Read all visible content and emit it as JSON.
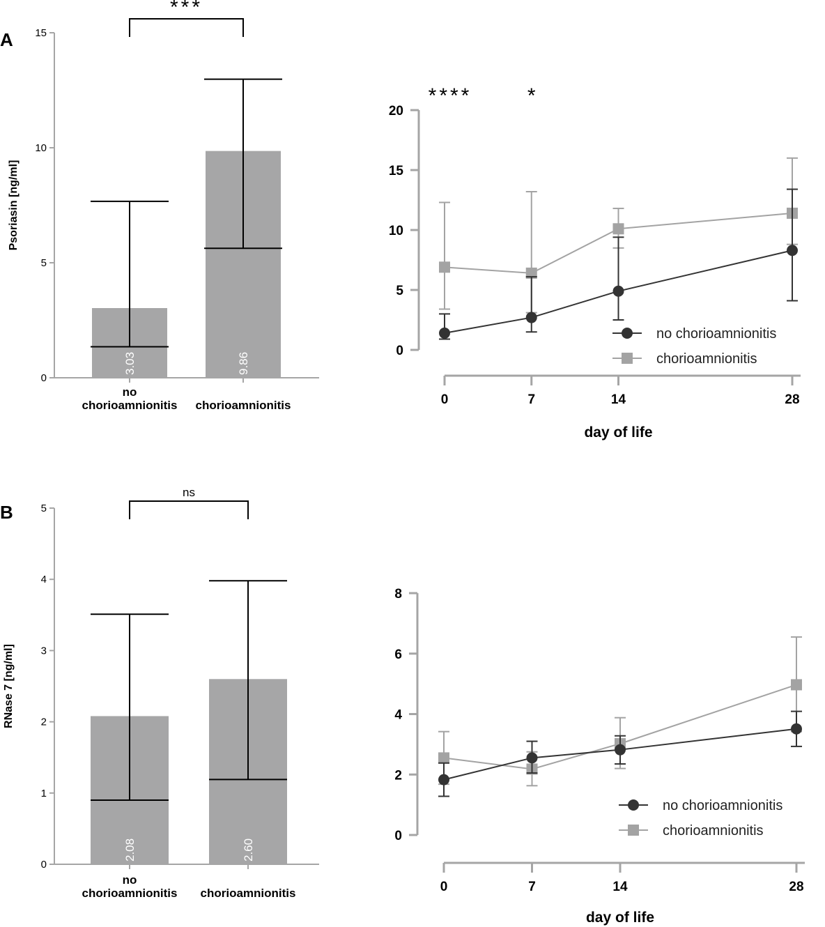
{
  "panels": {
    "A": "A",
    "B": "B"
  },
  "colors": {
    "bar": "#a6a6a7",
    "axis_light": "#a5a5a5",
    "no_chorio": "#333333",
    "chorio": "#a3a3a3",
    "errbar": "#000000"
  },
  "chart_data": [
    {
      "id": "A-bar",
      "type": "bar",
      "ylabel": "Psoriasin [ng/ml]",
      "ylim": [
        0,
        15
      ],
      "yticks": [
        0,
        5,
        10,
        15
      ],
      "categories": [
        [
          "no",
          "chorioamnionitis"
        ],
        [
          "chorioamnionitis"
        ]
      ],
      "values": [
        3.03,
        9.86
      ],
      "value_labels": [
        "3.03",
        "9.86"
      ],
      "err_low": [
        1.35,
        5.63
      ],
      "err_high": [
        7.67,
        12.98
      ],
      "significance": "***"
    },
    {
      "id": "A-line",
      "type": "line",
      "xlabel": "day of life",
      "ylabel": "",
      "x": [
        0,
        7,
        14,
        28
      ],
      "xticks": [
        "0",
        "7",
        "14",
        "28"
      ],
      "ylim": [
        0,
        20
      ],
      "yticks": [
        0,
        5,
        10,
        15,
        20
      ],
      "significance": [
        {
          "x": 0,
          "label": "****"
        },
        {
          "x": 7,
          "label": "*"
        }
      ],
      "series": [
        {
          "name": "no chorioamnionitis",
          "marker": "circle",
          "values": [
            1.4,
            2.7,
            4.9,
            8.3
          ],
          "err_low": [
            0.9,
            1.5,
            2.5,
            4.1
          ],
          "err_high": [
            3.0,
            6.1,
            9.4,
            13.4
          ]
        },
        {
          "name": "chorioamnionitis",
          "marker": "square",
          "values": [
            6.9,
            6.4,
            10.1,
            11.4
          ],
          "err_low": [
            3.4,
            3.1,
            8.5,
            8.8
          ],
          "err_high": [
            12.3,
            13.2,
            11.8,
            16.0
          ]
        }
      ],
      "legend_position": "bottom-right"
    },
    {
      "id": "B-bar",
      "type": "bar",
      "ylabel": "RNase 7 [ng/ml]",
      "ylim": [
        0,
        5
      ],
      "yticks": [
        0,
        1,
        2,
        3,
        4,
        5
      ],
      "categories": [
        [
          "no",
          "chorioamnionitis"
        ],
        [
          "chorioamnionitis"
        ]
      ],
      "values": [
        2.08,
        2.6
      ],
      "value_labels": [
        "2.08",
        "2.60"
      ],
      "err_low": [
        0.9,
        1.19
      ],
      "err_high": [
        3.51,
        3.98
      ],
      "significance": "ns"
    },
    {
      "id": "B-line",
      "type": "line",
      "xlabel": "day of life",
      "ylabel": "",
      "x": [
        0,
        7,
        14,
        28
      ],
      "xticks": [
        "0",
        "7",
        "14",
        "28"
      ],
      "ylim": [
        0,
        8
      ],
      "yticks": [
        0,
        2,
        4,
        6,
        8
      ],
      "significance": [],
      "series": [
        {
          "name": "no chorioamnionitis",
          "marker": "circle",
          "values": [
            1.83,
            2.55,
            2.82,
            3.51
          ],
          "err_low": [
            1.28,
            2.05,
            2.35,
            2.93
          ],
          "err_high": [
            2.38,
            3.1,
            3.28,
            4.09
          ]
        },
        {
          "name": "chorioamnionitis",
          "marker": "square",
          "values": [
            2.55,
            2.18,
            3.02,
            4.97
          ],
          "err_low": [
            1.68,
            1.63,
            2.2,
            3.42
          ],
          "err_high": [
            3.42,
            2.75,
            3.88,
            6.55
          ]
        }
      ],
      "legend_position": "bottom-right"
    }
  ]
}
